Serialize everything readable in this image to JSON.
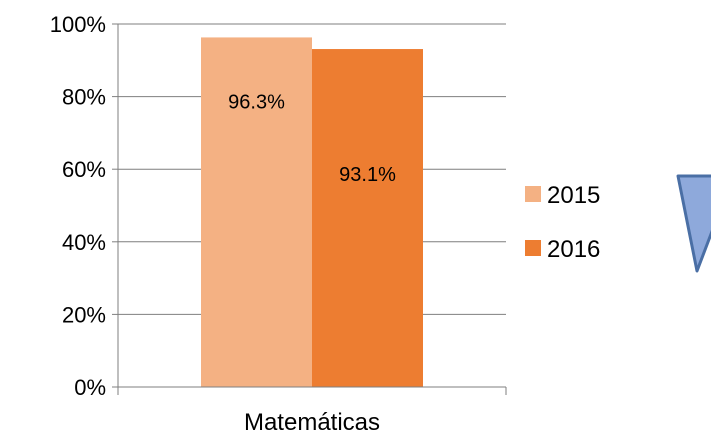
{
  "chart_data": {
    "type": "bar",
    "categories": [
      "Matemáticas"
    ],
    "series": [
      {
        "name": "2015",
        "values": [
          96.3
        ],
        "label": "96.3%",
        "color": "#F4B183"
      },
      {
        "name": "2016",
        "values": [
          93.1
        ],
        "label": "93.1%",
        "color": "#ED7D31"
      }
    ],
    "title": "",
    "xlabel": "",
    "ylabel": "",
    "ylim": [
      0,
      100
    ],
    "y_ticks": [
      "0%",
      "20%",
      "40%",
      "60%",
      "80%",
      "100%"
    ],
    "grid": true,
    "legend_position": "right"
  },
  "decor": {
    "shape": "down-triangle-icon",
    "fill": "#8EA9DB",
    "stroke": "#4A6FA5"
  },
  "colors": {
    "axis": "#7F7F7F",
    "grid": "#7F7F7F",
    "text": "#000000"
  }
}
